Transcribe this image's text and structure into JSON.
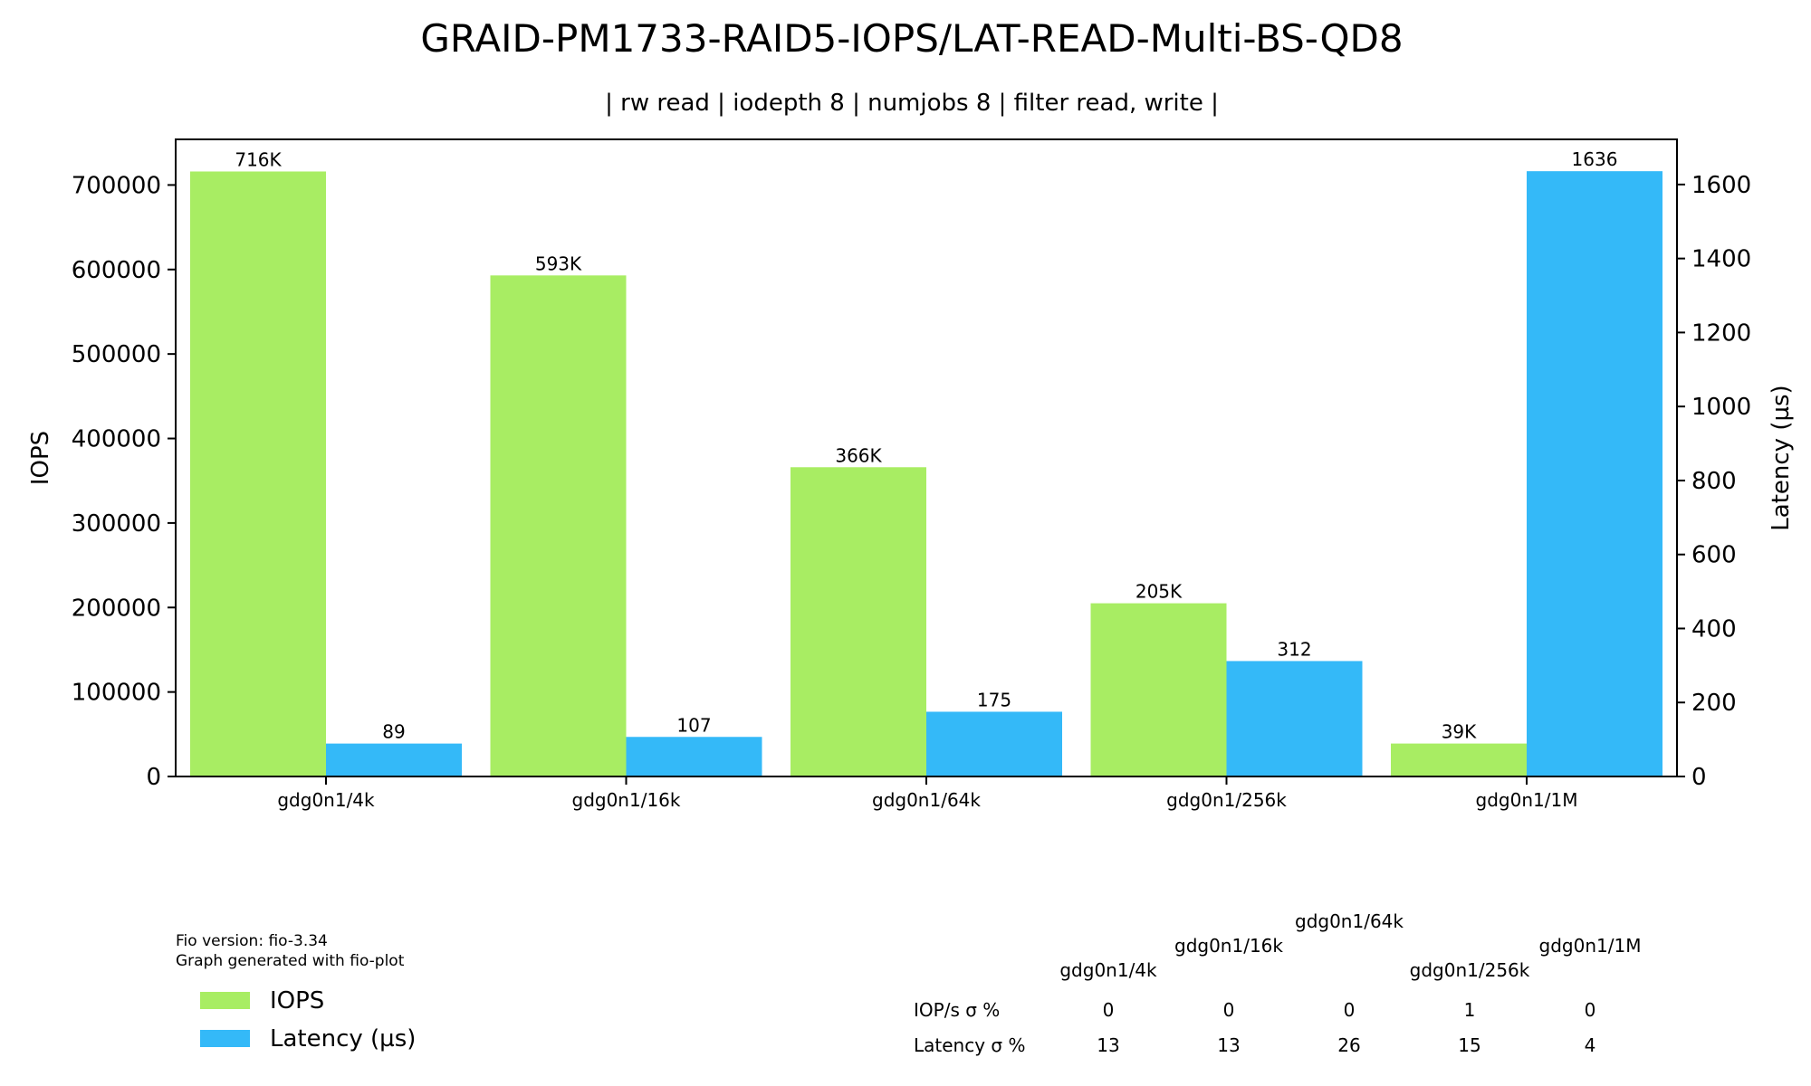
{
  "chart_data": {
    "type": "bar",
    "title": "GRAID-PM1733-RAID5-IOPS/LAT-READ-Multi-BS-QD8",
    "subtitle": "| rw read | iodepth 8 | numjobs 8 | filter read, write |",
    "categories": [
      "gdg0n1/4k",
      "gdg0n1/16k",
      "gdg0n1/64k",
      "gdg0n1/256k",
      "gdg0n1/1M"
    ],
    "series": [
      {
        "name": "IOPS",
        "axis": "left",
        "color": "#a8ed63",
        "values": [
          716000,
          593000,
          366000,
          205000,
          39000
        ],
        "labels": [
          "716K",
          "593K",
          "366K",
          "205K",
          "39K"
        ]
      },
      {
        "name": "Latency (µs)",
        "axis": "right",
        "color": "#34b9f8",
        "values": [
          89,
          107,
          175,
          312,
          1636
        ],
        "labels": [
          "89",
          "107",
          "175",
          "312",
          "1636"
        ]
      }
    ],
    "ylabel": "IOPS",
    "ylabel_right": "Latency (µs)",
    "ylim": [
      0,
      754000
    ],
    "yticks": [
      "0",
      "100000",
      "200000",
      "300000",
      "400000",
      "500000",
      "600000",
      "700000"
    ],
    "ylim_right": [
      0,
      1722
    ],
    "yticks_right": [
      "0",
      "200",
      "400",
      "600",
      "800",
      "1000",
      "1200",
      "1400",
      "1600"
    ],
    "grid": false,
    "legend_position": "bottom-left",
    "notes": [
      "Fio version: fio-3.34",
      "Graph generated with fio-plot"
    ],
    "stddev_table": {
      "columns": [
        "gdg0n1/4k",
        "gdg0n1/16k",
        "gdg0n1/64k",
        "gdg0n1/256k",
        "gdg0n1/1M"
      ],
      "rows": [
        {
          "label": "IOP/s σ %",
          "values": [
            "0",
            "0",
            "0",
            "1",
            "0"
          ]
        },
        {
          "label": "Latency σ %",
          "values": [
            "13",
            "13",
            "26",
            "15",
            "4"
          ]
        }
      ]
    }
  }
}
